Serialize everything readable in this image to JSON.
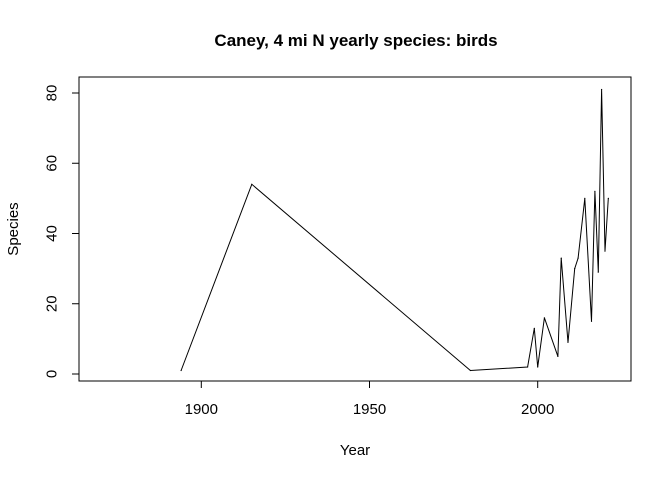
{
  "chart_data": {
    "type": "line",
    "title": "Caney, 4 mi N yearly species: birds",
    "xlabel": "Year",
    "ylabel": "Species",
    "xlim": [
      1864,
      2028
    ],
    "ylim": [
      0,
      81
    ],
    "xticks": [
      1900,
      1950,
      2000
    ],
    "yticks": [
      0,
      20,
      40,
      60,
      80
    ],
    "grid": false,
    "color": "#000000",
    "x": [
      1894,
      1915,
      1980,
      1997,
      1999,
      2000,
      2002,
      2006,
      2007,
      2009,
      2011,
      2012,
      2014,
      2016,
      2017,
      2018,
      2019,
      2020,
      2021
    ],
    "y": [
      1,
      54,
      1,
      2,
      13,
      2,
      16,
      5,
      33,
      9,
      30,
      33,
      50,
      15,
      52,
      29,
      81,
      35,
      50
    ]
  }
}
